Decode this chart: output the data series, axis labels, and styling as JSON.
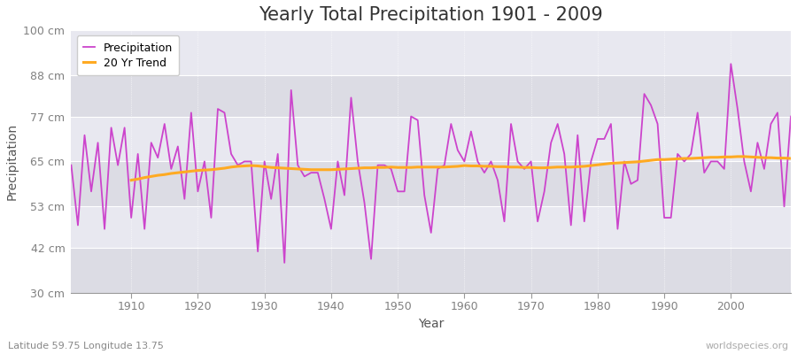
{
  "title": "Yearly Total Precipitation 1901 - 2009",
  "xlabel": "Year",
  "ylabel": "Precipitation",
  "lat_lon_label": "Latitude 59.75 Longitude 13.75",
  "watermark": "worldspecies.org",
  "years": [
    1901,
    1902,
    1903,
    1904,
    1905,
    1906,
    1907,
    1908,
    1909,
    1910,
    1911,
    1912,
    1913,
    1914,
    1915,
    1916,
    1917,
    1918,
    1919,
    1920,
    1921,
    1922,
    1923,
    1924,
    1925,
    1926,
    1927,
    1928,
    1929,
    1930,
    1931,
    1932,
    1933,
    1934,
    1935,
    1936,
    1937,
    1938,
    1939,
    1940,
    1941,
    1942,
    1943,
    1944,
    1945,
    1946,
    1947,
    1948,
    1949,
    1950,
    1951,
    1952,
    1953,
    1954,
    1955,
    1956,
    1957,
    1958,
    1959,
    1960,
    1961,
    1962,
    1963,
    1964,
    1965,
    1966,
    1967,
    1968,
    1969,
    1970,
    1971,
    1972,
    1973,
    1974,
    1975,
    1976,
    1977,
    1978,
    1979,
    1980,
    1981,
    1982,
    1983,
    1984,
    1985,
    1986,
    1987,
    1988,
    1989,
    1990,
    1991,
    1992,
    1993,
    1994,
    1995,
    1996,
    1997,
    1998,
    1999,
    2000,
    2001,
    2002,
    2003,
    2004,
    2005,
    2006,
    2007,
    2008,
    2009
  ],
  "precipitation": [
    64,
    48,
    72,
    57,
    70,
    47,
    74,
    64,
    74,
    50,
    67,
    47,
    70,
    66,
    75,
    63,
    69,
    55,
    78,
    57,
    65,
    50,
    79,
    78,
    67,
    64,
    65,
    65,
    41,
    65,
    55,
    67,
    38,
    84,
    64,
    61,
    62,
    62,
    55,
    47,
    65,
    56,
    82,
    65,
    54,
    39,
    64,
    64,
    63,
    57,
    57,
    77,
    76,
    56,
    46,
    63,
    64,
    75,
    68,
    65,
    73,
    65,
    62,
    65,
    60,
    49,
    75,
    65,
    63,
    65,
    49,
    57,
    70,
    75,
    67,
    48,
    72,
    49,
    65,
    71,
    71,
    75,
    47,
    65,
    59,
    60,
    83,
    80,
    75,
    50,
    50,
    67,
    65,
    67,
    78,
    62,
    65,
    65,
    63,
    91,
    79,
    65,
    57,
    70,
    63,
    75,
    78,
    53,
    77
  ],
  "trend": [
    null,
    null,
    null,
    null,
    null,
    null,
    null,
    null,
    null,
    60.0,
    60.3,
    60.7,
    61.0,
    61.3,
    61.5,
    61.8,
    62.0,
    62.2,
    62.4,
    62.6,
    62.7,
    62.8,
    63.0,
    63.2,
    63.5,
    63.7,
    63.8,
    63.9,
    63.8,
    63.6,
    63.4,
    63.3,
    63.2,
    63.1,
    63.0,
    62.9,
    62.8,
    62.8,
    62.8,
    62.8,
    62.9,
    63.0,
    63.1,
    63.2,
    63.3,
    63.3,
    63.4,
    63.4,
    63.5,
    63.4,
    63.4,
    63.4,
    63.5,
    63.5,
    63.5,
    63.5,
    63.5,
    63.6,
    63.7,
    63.9,
    63.8,
    63.8,
    63.7,
    63.7,
    63.6,
    63.6,
    63.5,
    63.5,
    63.4,
    63.4,
    63.3,
    63.3,
    63.4,
    63.5,
    63.5,
    63.5,
    63.6,
    63.7,
    63.9,
    64.1,
    64.3,
    64.5,
    64.6,
    64.7,
    64.8,
    64.9,
    65.1,
    65.3,
    65.5,
    65.5,
    65.6,
    65.7,
    65.8,
    65.8,
    65.9,
    66.0,
    66.1,
    66.1,
    66.2,
    66.2,
    66.3,
    66.3,
    66.2,
    66.1,
    66.0,
    66.0,
    65.9,
    65.9,
    65.8
  ],
  "ylim": [
    30,
    100
  ],
  "yticks": [
    30,
    42,
    53,
    65,
    77,
    88,
    100
  ],
  "ytick_labels": [
    "30 cm",
    "42 cm",
    "53 cm",
    "65 cm",
    "77 cm",
    "88 cm",
    "100 cm"
  ],
  "xlim": [
    1901,
    2009
  ],
  "xticks": [
    1910,
    1920,
    1930,
    1940,
    1950,
    1960,
    1970,
    1980,
    1990,
    2000
  ],
  "precip_color": "#cc44cc",
  "trend_color": "#ffaa22",
  "bg_color": "#ffffff",
  "plot_bg_color": "#e8e8ec",
  "band_color_light": "#e0e0e8",
  "band_color_dark": "#d0d0da",
  "grid_color": "#ffffff",
  "title_fontsize": 15,
  "axis_fontsize": 10,
  "tick_fontsize": 9,
  "label_color": "#808080",
  "watermark_color": "#aaaaaa"
}
